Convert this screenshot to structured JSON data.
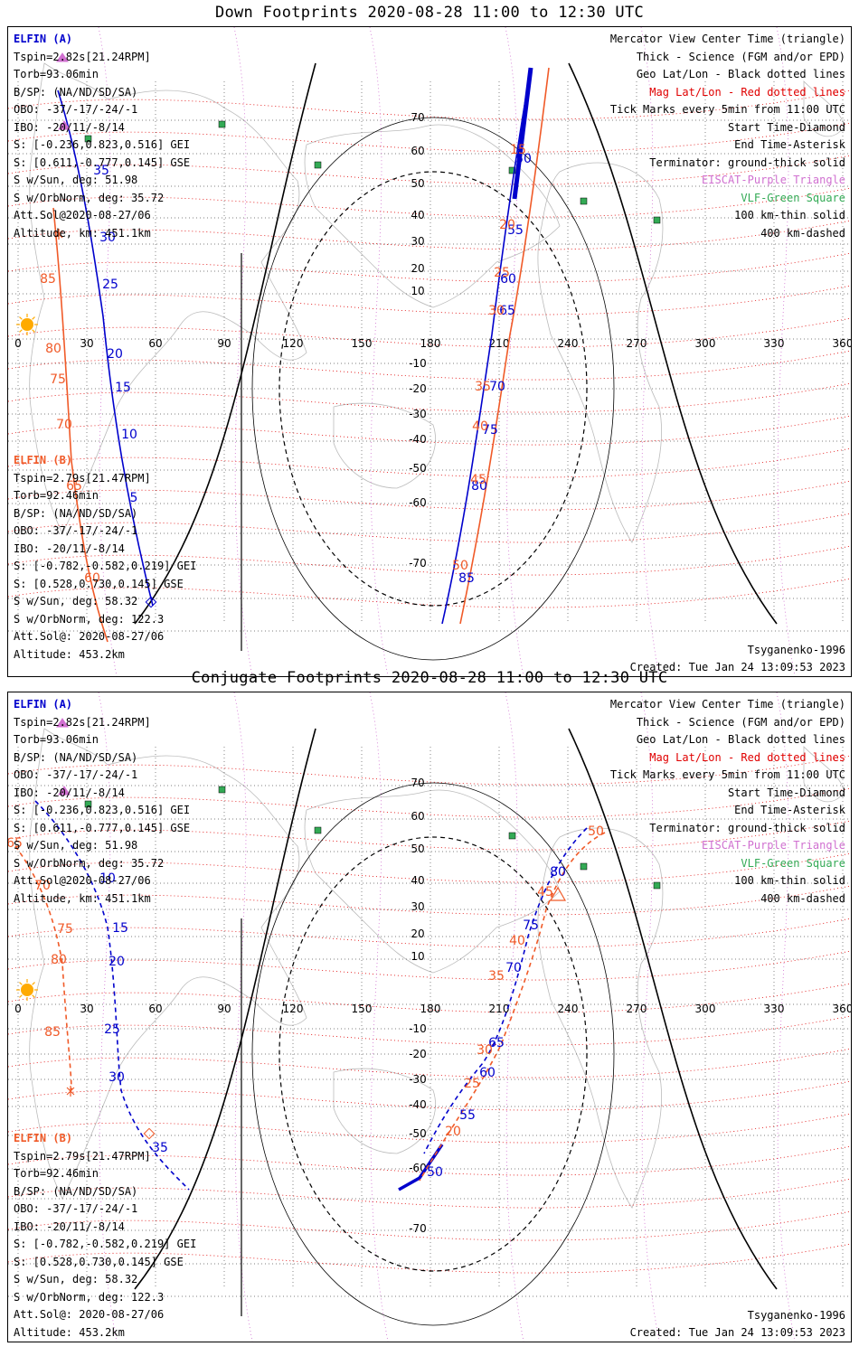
{
  "panels": [
    {
      "title": "Down Footprints 2020-08-28 11:00 to 12:30 UTC",
      "elfin_a": {
        "name": "ELFIN (A)",
        "lines": [
          "Tspin=2.82s[21.24RPM]",
          "Torb=93.06min",
          "B/SP: (NA/ND/SD/SA)",
          "OBO: -37/-17/-24/-1",
          "IBO: -20/11/-8/14",
          "S: [-0.236,0.823,0.516] GEI",
          "S: [0.611,-0.777,0.145] GSE",
          "S w/Sun, deg: 51.98",
          "S w/OrbNorm, deg: 35.72",
          "Att.Sol@2020-08-27/06",
          "Altitude, km: 451.1km"
        ]
      },
      "elfin_b": {
        "name": "ELFIN (B)",
        "lines": [
          "Tspin=2.79s[21.47RPM]",
          "Torb=92.46min",
          "B/SP: (NA/ND/SD/SA)",
          "OBO: -37/-17/-24/-1",
          "IBO: -20/11/-8/14",
          "S: [-0.782,-0.582,0.219] GEI",
          "S: [0.528,0.730,0.145] GSE",
          "S w/Sun, deg: 58.32",
          "S w/OrbNorm, deg: 122.3",
          "Att.Sol@: 2020-08-27/06",
          "Altitude: 453.2km"
        ]
      },
      "a_ticks": [
        "35",
        "30",
        "25",
        "20",
        "15",
        "10",
        "5",
        "50",
        "55",
        "60",
        "65",
        "70",
        "75",
        "80",
        "85"
      ],
      "b_ticks": [
        "85",
        "80",
        "75",
        "70",
        "65",
        "60",
        "15",
        "20",
        "25",
        "30",
        "35",
        "40",
        "45",
        "50"
      ]
    },
    {
      "title": "Conjugate Footprints 2020-08-28 11:00 to 12:30 UTC",
      "elfin_a": {
        "name": "ELFIN (A)",
        "lines": [
          "Tspin=2.82s[21.24RPM]",
          "Torb=93.06min",
          "B/SP: (NA/ND/SD/SA)",
          "OBO: -37/-17/-24/-1",
          "IBO: -20/11/-8/14",
          "S: [-0.236,0.823,0.516] GEI",
          "S: [0.611,-0.777,0.145] GSE",
          "S w/Sun, deg: 51.98",
          "S w/OrbNorm, deg: 35.72",
          "Att.Sol@2020-08-27/06",
          "Altitude, km: 451.1km"
        ]
      },
      "elfin_b": {
        "name": "ELFIN (B)",
        "lines": [
          "Tspin=2.79s[21.47RPM]",
          "Torb=92.46min",
          "B/SP: (NA/ND/SD/SA)",
          "OBO: -37/-17/-24/-1",
          "IBO: -20/11/-8/14",
          "S: [-0.782,-0.582,0.219] GEI",
          "S: [0.528,0.730,0.145] GSE",
          "S w/Sun, deg: 58.32",
          "S w/OrbNorm, deg: 122.3",
          "Att.Sol@: 2020-08-27/06",
          "Altitude: 453.2km"
        ]
      },
      "a_ticks": [
        "10",
        "15",
        "20",
        "25",
        "30",
        "35",
        "80",
        "75",
        "70",
        "65",
        "60",
        "55",
        "50"
      ],
      "b_ticks": [
        "65",
        "70",
        "75",
        "80",
        "85",
        "50",
        "45",
        "40",
        "35",
        "30",
        "25",
        "20"
      ]
    }
  ],
  "legend": {
    "line1": "Mercator View Center Time (triangle)",
    "line2": "Thick - Science (FGM and/or EPD)",
    "line3": "Geo Lat/Lon - Black dotted lines",
    "line4": "Mag Lat/Lon - Red dotted lines",
    "line5": "Tick Marks every 5min from 11:00 UTC",
    "line6": "Start Time-Diamond",
    "line7": "End Time-Asterisk",
    "line8": "Terminator: ground-thick solid",
    "line9": "EISCAT-Purple Triangle",
    "line10": "VLF-Green Square",
    "line11": "100 km-thin solid",
    "line12": "400 km-dashed"
  },
  "footer": {
    "model": "Tsyganenko-1996",
    "created": "Created: Tue Jan 24 13:09:53 2023"
  },
  "map": {
    "lon_ticks": [
      "0",
      "30",
      "60",
      "90",
      "120",
      "150",
      "180",
      "210",
      "240",
      "270",
      "300",
      "330",
      "360"
    ],
    "lat_ticks": [
      "70",
      "60",
      "50",
      "40",
      "30",
      "20",
      "10",
      "-10",
      "-20",
      "-30",
      "-40",
      "-50",
      "-60",
      "-70"
    ]
  },
  "colors": {
    "elfin_a": "#0000cc",
    "elfin_b": "#f05a28",
    "mag_grid": "#e00000",
    "geo_grid": "#000000",
    "eiscat": "#d070d0",
    "vlf": "#33aa55"
  }
}
